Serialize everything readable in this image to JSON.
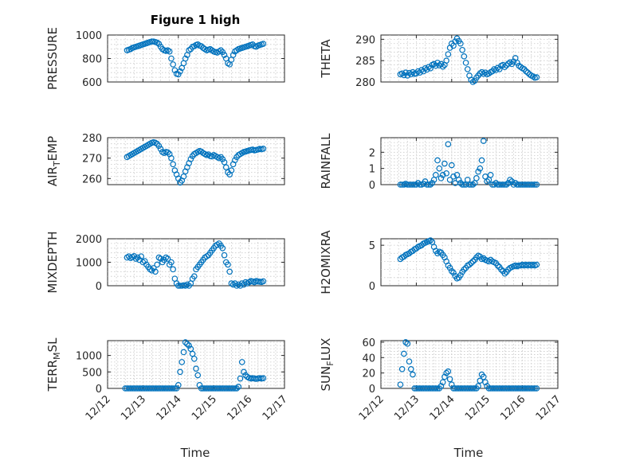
{
  "figure": {
    "title": "Figure 1 high",
    "marker_color": "#0072BD",
    "x_axis": {
      "label": "Time",
      "range": [
        0,
        5
      ],
      "tick_values": [
        0,
        1,
        2,
        3,
        4,
        5
      ],
      "tick_labels": [
        "12/12",
        "12/13",
        "12/14",
        "12/15",
        "12/16",
        "12/17"
      ]
    }
  },
  "chart_data": [
    {
      "type": "scatter",
      "ylabel": "PRESSURE",
      "ylim": [
        600,
        1000
      ],
      "yticks": [
        600,
        800,
        1000
      ],
      "x": [
        0.55,
        0.6,
        0.65,
        0.7,
        0.75,
        0.8,
        0.85,
        0.9,
        0.95,
        1.0,
        1.05,
        1.1,
        1.15,
        1.2,
        1.25,
        1.3,
        1.35,
        1.4,
        1.45,
        1.5,
        1.55,
        1.6,
        1.65,
        1.7,
        1.75,
        1.8,
        1.85,
        1.9,
        1.95,
        2.0,
        2.05,
        2.1,
        2.15,
        2.2,
        2.25,
        2.3,
        2.35,
        2.4,
        2.45,
        2.5,
        2.55,
        2.6,
        2.65,
        2.7,
        2.75,
        2.8,
        2.85,
        2.9,
        2.95,
        3.0,
        3.05,
        3.1,
        3.15,
        3.2,
        3.25,
        3.3,
        3.35,
        3.4,
        3.45,
        3.5,
        3.55,
        3.6,
        3.65,
        3.7,
        3.75,
        3.8,
        3.85,
        3.9,
        3.95,
        4.0,
        4.05,
        4.1,
        4.15,
        4.2,
        4.25,
        4.3,
        4.35,
        4.4
      ],
      "values": [
        870,
        875,
        880,
        890,
        895,
        900,
        905,
        910,
        915,
        920,
        925,
        930,
        935,
        940,
        945,
        945,
        940,
        935,
        925,
        900,
        880,
        870,
        865,
        870,
        860,
        800,
        750,
        700,
        670,
        665,
        690,
        720,
        760,
        800,
        830,
        870,
        880,
        900,
        905,
        915,
        920,
        910,
        905,
        890,
        880,
        870,
        875,
        880,
        870,
        860,
        855,
        850,
        860,
        870,
        855,
        830,
        800,
        760,
        750,
        790,
        830,
        860,
        870,
        880,
        885,
        890,
        895,
        900,
        905,
        910,
        915,
        920,
        905,
        900,
        910,
        915,
        920,
        925
      ]
    },
    {
      "type": "scatter",
      "ylabel": "THETA",
      "ylim": [
        280,
        291
      ],
      "yticks": [
        280,
        285,
        290
      ],
      "x": [
        0.55,
        0.6,
        0.65,
        0.7,
        0.75,
        0.8,
        0.85,
        0.9,
        0.95,
        1.0,
        1.05,
        1.1,
        1.15,
        1.2,
        1.25,
        1.3,
        1.35,
        1.4,
        1.45,
        1.5,
        1.55,
        1.6,
        1.65,
        1.7,
        1.75,
        1.8,
        1.85,
        1.9,
        1.95,
        2.0,
        2.05,
        2.1,
        2.15,
        2.2,
        2.25,
        2.3,
        2.35,
        2.4,
        2.45,
        2.5,
        2.55,
        2.6,
        2.65,
        2.7,
        2.75,
        2.8,
        2.85,
        2.9,
        2.95,
        3.0,
        3.05,
        3.1,
        3.15,
        3.2,
        3.25,
        3.3,
        3.35,
        3.4,
        3.45,
        3.5,
        3.55,
        3.6,
        3.65,
        3.7,
        3.75,
        3.8,
        3.85,
        3.9,
        3.95,
        4.0,
        4.05,
        4.1,
        4.15,
        4.2,
        4.25,
        4.3,
        4.35,
        4.4
      ],
      "values": [
        281.8,
        282.0,
        281.6,
        282.2,
        281.5,
        282.1,
        281.8,
        282.3,
        281.9,
        282.0,
        282.5,
        282.2,
        282.8,
        282.5,
        283.2,
        282.9,
        283.5,
        283.2,
        284.0,
        284.2,
        283.8,
        284.5,
        283.9,
        284.2,
        283.6,
        284.0,
        285.0,
        286.5,
        288.0,
        289.0,
        288.5,
        289.5,
        290.2,
        289.6,
        289.0,
        287.5,
        286.0,
        284.5,
        283.0,
        281.5,
        280.5,
        280.0,
        280.3,
        281.0,
        281.5,
        282.0,
        282.3,
        281.9,
        282.2,
        281.8,
        282.0,
        282.3,
        282.5,
        283.0,
        282.8,
        283.3,
        283.0,
        283.8,
        284.0,
        283.5,
        283.9,
        284.3,
        284.6,
        284.2,
        284.8,
        285.6,
        284.5,
        283.8,
        283.5,
        283.2,
        283.0,
        282.5,
        282.2,
        281.8,
        281.5,
        281.3,
        281.0,
        281.1
      ]
    },
    {
      "type": "scatter",
      "ylabel": "AIR_TEMP",
      "ylim": [
        257,
        280
      ],
      "yticks": [
        260,
        270,
        280
      ],
      "x": [
        0.55,
        0.6,
        0.65,
        0.7,
        0.75,
        0.8,
        0.85,
        0.9,
        0.95,
        1.0,
        1.05,
        1.1,
        1.15,
        1.2,
        1.25,
        1.3,
        1.35,
        1.4,
        1.45,
        1.5,
        1.55,
        1.6,
        1.65,
        1.7,
        1.75,
        1.8,
        1.85,
        1.9,
        1.95,
        2.0,
        2.05,
        2.1,
        2.15,
        2.2,
        2.25,
        2.3,
        2.35,
        2.4,
        2.45,
        2.5,
        2.55,
        2.6,
        2.65,
        2.7,
        2.75,
        2.8,
        2.85,
        2.9,
        2.95,
        3.0,
        3.05,
        3.1,
        3.15,
        3.2,
        3.25,
        3.3,
        3.35,
        3.4,
        3.45,
        3.5,
        3.55,
        3.6,
        3.65,
        3.7,
        3.75,
        3.8,
        3.85,
        3.9,
        3.95,
        4.0,
        4.05,
        4.1,
        4.15,
        4.2,
        4.25,
        4.3,
        4.35,
        4.4
      ],
      "values": [
        270.5,
        271.0,
        271.5,
        272.0,
        272.5,
        273.0,
        273.5,
        274.0,
        274.5,
        275.0,
        275.5,
        276.0,
        276.5,
        277.0,
        277.5,
        277.8,
        277.5,
        277.0,
        276.0,
        274.5,
        273.0,
        272.5,
        273.0,
        272.8,
        272.0,
        270.0,
        267.0,
        264.0,
        262.0,
        260.0,
        258.0,
        259.0,
        261.0,
        263.5,
        265.5,
        267.5,
        269.5,
        271.0,
        272.0,
        272.5,
        273.0,
        273.5,
        273.2,
        272.5,
        272.0,
        271.5,
        271.8,
        271.0,
        270.8,
        271.5,
        271.0,
        270.5,
        270.0,
        270.5,
        269.5,
        268.0,
        265.5,
        263.0,
        262.0,
        264.0,
        267.0,
        269.0,
        270.5,
        271.5,
        272.0,
        272.5,
        273.0,
        273.2,
        273.5,
        273.8,
        274.0,
        274.2,
        273.8,
        274.0,
        274.2,
        274.5,
        274.3,
        274.6
      ]
    },
    {
      "type": "scatter",
      "ylabel": "RAINFALL",
      "ylim": [
        0,
        2.9
      ],
      "yticks": [
        0,
        1,
        2
      ],
      "x": [
        0.55,
        0.6,
        0.65,
        0.7,
        0.75,
        0.8,
        0.85,
        0.9,
        0.95,
        1.0,
        1.05,
        1.1,
        1.15,
        1.2,
        1.25,
        1.3,
        1.35,
        1.4,
        1.45,
        1.5,
        1.55,
        1.6,
        1.65,
        1.7,
        1.75,
        1.8,
        1.85,
        1.9,
        1.95,
        2.0,
        2.05,
        2.1,
        2.15,
        2.2,
        2.25,
        2.3,
        2.35,
        2.4,
        2.45,
        2.5,
        2.55,
        2.6,
        2.65,
        2.7,
        2.75,
        2.8,
        2.85,
        2.9,
        2.95,
        3.0,
        3.05,
        3.1,
        3.15,
        3.2,
        3.25,
        3.3,
        3.35,
        3.4,
        3.45,
        3.5,
        3.55,
        3.6,
        3.65,
        3.7,
        3.75,
        3.8,
        3.85,
        3.9,
        3.95,
        4.0,
        4.05,
        4.1,
        4.15,
        4.2,
        4.25,
        4.3,
        4.35,
        4.4
      ],
      "values": [
        0,
        0,
        0,
        0.05,
        0,
        0,
        0,
        0,
        0,
        0,
        0.1,
        0,
        0,
        0.05,
        0.2,
        0,
        0,
        0,
        0.1,
        0.3,
        0.6,
        1.5,
        1.0,
        0.4,
        0.6,
        1.3,
        0.7,
        2.5,
        0.3,
        1.2,
        0.5,
        0.1,
        0.6,
        0.3,
        0.1,
        0,
        0,
        0,
        0.3,
        0,
        0,
        0,
        0.1,
        0.4,
        0.8,
        1.0,
        1.5,
        2.7,
        0.5,
        0.2,
        0.3,
        0.6,
        0,
        0,
        0.1,
        0,
        0,
        0,
        0,
        0,
        0,
        0.1,
        0.3,
        0.2,
        0,
        0.1,
        0,
        0,
        0,
        0,
        0,
        0,
        0,
        0,
        0,
        0,
        0,
        0
      ]
    },
    {
      "type": "scatter",
      "ylabel": "MIXDEPTH",
      "ylim": [
        0,
        2000
      ],
      "yticks": [
        0,
        1000,
        2000
      ],
      "x": [
        0.55,
        0.6,
        0.65,
        0.7,
        0.75,
        0.8,
        0.85,
        0.9,
        0.95,
        1.0,
        1.05,
        1.1,
        1.15,
        1.2,
        1.25,
        1.3,
        1.35,
        1.4,
        1.45,
        1.5,
        1.55,
        1.6,
        1.65,
        1.7,
        1.75,
        1.8,
        1.85,
        1.9,
        1.95,
        2.0,
        2.05,
        2.1,
        2.15,
        2.2,
        2.25,
        2.3,
        2.35,
        2.4,
        2.45,
        2.5,
        2.55,
        2.6,
        2.65,
        2.7,
        2.75,
        2.8,
        2.85,
        2.9,
        2.95,
        3.0,
        3.05,
        3.1,
        3.15,
        3.2,
        3.25,
        3.3,
        3.35,
        3.4,
        3.45,
        3.5,
        3.55,
        3.6,
        3.65,
        3.7,
        3.75,
        3.8,
        3.85,
        3.9,
        3.95,
        4.0,
        4.05,
        4.1,
        4.15,
        4.2,
        4.25,
        4.3,
        4.35,
        4.4
      ],
      "values": [
        1200,
        1250,
        1180,
        1220,
        1260,
        1150,
        1200,
        1100,
        1250,
        1000,
        1050,
        900,
        800,
        700,
        650,
        750,
        600,
        900,
        1200,
        1150,
        1000,
        1100,
        1200,
        1150,
        900,
        1000,
        700,
        300,
        100,
        0,
        0,
        0,
        20,
        0,
        50,
        0,
        100,
        300,
        400,
        700,
        800,
        900,
        1000,
        1100,
        1200,
        1250,
        1300,
        1400,
        1500,
        1600,
        1700,
        1750,
        1800,
        1700,
        1600,
        1300,
        1000,
        900,
        600,
        100,
        50,
        100,
        0,
        50,
        0,
        100,
        50,
        150,
        100,
        150,
        200,
        180,
        150,
        200,
        180,
        170,
        160,
        190
      ]
    },
    {
      "type": "scatter",
      "ylabel": "H2OMIXRA",
      "ylim": [
        0,
        5.8
      ],
      "yticks": [
        0,
        5
      ],
      "x": [
        0.55,
        0.6,
        0.65,
        0.7,
        0.75,
        0.8,
        0.85,
        0.9,
        0.95,
        1.0,
        1.05,
        1.1,
        1.15,
        1.2,
        1.25,
        1.3,
        1.35,
        1.4,
        1.45,
        1.5,
        1.55,
        1.6,
        1.65,
        1.7,
        1.75,
        1.8,
        1.85,
        1.9,
        1.95,
        2.0,
        2.05,
        2.1,
        2.15,
        2.2,
        2.25,
        2.3,
        2.35,
        2.4,
        2.45,
        2.5,
        2.55,
        2.6,
        2.65,
        2.7,
        2.75,
        2.8,
        2.85,
        2.9,
        2.95,
        3.0,
        3.05,
        3.1,
        3.15,
        3.2,
        3.25,
        3.3,
        3.35,
        3.4,
        3.45,
        3.5,
        3.55,
        3.6,
        3.65,
        3.7,
        3.75,
        3.8,
        3.85,
        3.9,
        3.95,
        4.0,
        4.05,
        4.1,
        4.15,
        4.2,
        4.25,
        4.3,
        4.35,
        4.4
      ],
      "values": [
        3.3,
        3.5,
        3.6,
        3.8,
        3.9,
        4.0,
        4.2,
        4.3,
        4.5,
        4.6,
        4.8,
        4.9,
        5.0,
        5.2,
        5.3,
        5.4,
        5.5,
        5.6,
        5.4,
        4.8,
        4.3,
        4.0,
        4.2,
        4.1,
        3.8,
        3.5,
        3.0,
        2.5,
        2.2,
        1.8,
        1.6,
        1.2,
        0.9,
        1.0,
        1.3,
        1.7,
        2.0,
        2.2,
        2.5,
        2.6,
        2.8,
        3.0,
        3.2,
        3.5,
        3.7,
        3.6,
        3.3,
        3.4,
        3.2,
        3.1,
        3.0,
        3.2,
        3.0,
        2.9,
        2.8,
        2.5,
        2.3,
        2.0,
        1.8,
        1.5,
        1.7,
        2.0,
        2.2,
        2.3,
        2.4,
        2.5,
        2.4,
        2.5,
        2.5,
        2.6,
        2.5,
        2.6,
        2.5,
        2.6,
        2.5,
        2.6,
        2.5,
        2.6
      ]
    },
    {
      "type": "scatter",
      "ylabel": "TERR_MSL",
      "ylim": [
        0,
        1450
      ],
      "yticks": [
        0,
        500,
        1000
      ],
      "x": [
        0.5,
        0.55,
        0.6,
        0.65,
        0.7,
        0.75,
        0.8,
        0.85,
        0.9,
        0.95,
        1.0,
        1.05,
        1.1,
        1.15,
        1.2,
        1.25,
        1.3,
        1.35,
        1.4,
        1.45,
        1.5,
        1.55,
        1.6,
        1.65,
        1.7,
        1.75,
        1.8,
        1.85,
        1.9,
        1.95,
        2.0,
        2.05,
        2.1,
        2.15,
        2.2,
        2.25,
        2.3,
        2.35,
        2.4,
        2.45,
        2.5,
        2.55,
        2.6,
        2.65,
        2.7,
        2.75,
        2.8,
        2.85,
        2.9,
        2.95,
        3.0,
        3.05,
        3.1,
        3.15,
        3.2,
        3.25,
        3.3,
        3.35,
        3.4,
        3.45,
        3.5,
        3.55,
        3.6,
        3.65,
        3.7,
        3.75,
        3.8,
        3.85,
        3.9,
        3.95,
        4.0,
        4.05,
        4.1,
        4.15,
        4.2,
        4.25,
        4.3,
        4.35,
        4.4
      ],
      "values": [
        0,
        0,
        0,
        0,
        0,
        0,
        0,
        0,
        0,
        0,
        0,
        0,
        0,
        0,
        0,
        0,
        0,
        0,
        0,
        0,
        0,
        0,
        0,
        0,
        0,
        0,
        0,
        0,
        0,
        0,
        100,
        500,
        800,
        1100,
        1400,
        1350,
        1300,
        1200,
        1050,
        900,
        600,
        400,
        100,
        0,
        0,
        0,
        0,
        0,
        0,
        0,
        0,
        0,
        0,
        0,
        0,
        0,
        0,
        0,
        0,
        0,
        0,
        0,
        0,
        0,
        50,
        300,
        800,
        500,
        400,
        350,
        320,
        300,
        310,
        300,
        290,
        300,
        310,
        300,
        310
      ]
    },
    {
      "type": "scatter",
      "ylabel": "SUN_FLUX",
      "ylim": [
        0,
        62
      ],
      "yticks": [
        0,
        20,
        40,
        60
      ],
      "x": [
        0.55,
        0.6,
        0.65,
        0.7,
        0.75,
        0.8,
        0.85,
        0.9,
        0.95,
        1.0,
        1.05,
        1.1,
        1.15,
        1.2,
        1.25,
        1.3,
        1.35,
        1.4,
        1.45,
        1.5,
        1.55,
        1.6,
        1.65,
        1.7,
        1.75,
        1.8,
        1.85,
        1.9,
        1.95,
        2.0,
        2.05,
        2.1,
        2.15,
        2.2,
        2.25,
        2.3,
        2.35,
        2.4,
        2.45,
        2.5,
        2.55,
        2.6,
        2.65,
        2.7,
        2.75,
        2.8,
        2.85,
        2.9,
        2.95,
        3.0,
        3.05,
        3.1,
        3.15,
        3.2,
        3.25,
        3.3,
        3.35,
        3.4,
        3.45,
        3.5,
        3.55,
        3.6,
        3.65,
        3.7,
        3.75,
        3.8,
        3.85,
        3.9,
        3.95,
        4.0,
        4.05,
        4.1,
        4.15,
        4.2,
        4.25,
        4.3,
        4.35,
        4.4
      ],
      "values": [
        5,
        25,
        45,
        60,
        58,
        35,
        25,
        18,
        0,
        0,
        0,
        0,
        0,
        0,
        0,
        0,
        0,
        0,
        0,
        0,
        0,
        0,
        0,
        3,
        8,
        15,
        20,
        22,
        12,
        5,
        0,
        0,
        0,
        0,
        0,
        0,
        0,
        0,
        0,
        0,
        0,
        0,
        0,
        0,
        3,
        10,
        18,
        15,
        8,
        3,
        0,
        0,
        0,
        0,
        0,
        0,
        0,
        0,
        0,
        0,
        0,
        0,
        0,
        0,
        0,
        0,
        0,
        0,
        0,
        0,
        0,
        0,
        0,
        0,
        0,
        0,
        0,
        0
      ]
    }
  ]
}
